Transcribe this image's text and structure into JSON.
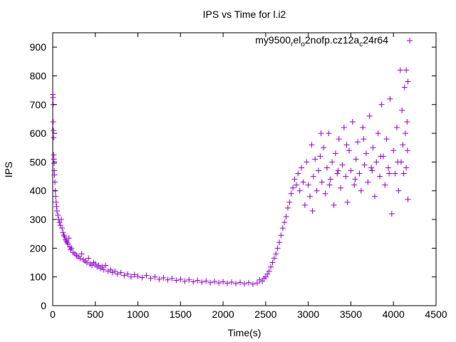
{
  "chart_data": {
    "type": "scatter",
    "title": "IPS vs Time for l.i2",
    "xlabel": "Time(s)",
    "ylabel": "IPS",
    "xlim": [
      0,
      4500
    ],
    "ylim": [
      0,
      950
    ],
    "xticks": [
      "0",
      "500",
      "1000",
      "1500",
      "2000",
      "2500",
      "3000",
      "3500",
      "4000",
      "4500"
    ],
    "yticks": [
      "0",
      "100",
      "200",
      "300",
      "400",
      "500",
      "600",
      "700",
      "800",
      "900"
    ],
    "grid": false,
    "legend": {
      "placement": "top-right",
      "label_parts": [
        "my9500",
        "r",
        "el",
        "o",
        "2nofp.cz12a",
        "c",
        "24r64"
      ]
    },
    "series": [
      {
        "name": "my9500_rel_o2nofp.cz12a_c24r64",
        "color": "#9400d3",
        "marker": "plus",
        "points": [
          [
            2,
            735
          ],
          [
            4,
            725
          ],
          [
            5,
            700
          ],
          [
            6,
            640
          ],
          [
            8,
            610
          ],
          [
            10,
            585
          ],
          [
            12,
            525
          ],
          [
            14,
            510
          ],
          [
            16,
            495
          ],
          [
            18,
            470
          ],
          [
            20,
            455
          ],
          [
            25,
            430
          ],
          [
            30,
            400
          ],
          [
            35,
            380
          ],
          [
            40,
            360
          ],
          [
            45,
            345
          ],
          [
            50,
            330
          ],
          [
            60,
            315
          ],
          [
            70,
            300
          ],
          [
            80,
            290
          ],
          [
            90,
            280
          ],
          [
            100,
            300
          ],
          [
            110,
            270
          ],
          [
            120,
            255
          ],
          [
            130,
            245
          ],
          [
            140,
            240
          ],
          [
            150,
            230
          ],
          [
            160,
            225
          ],
          [
            170,
            220
          ],
          [
            180,
            215
          ],
          [
            190,
            235
          ],
          [
            200,
            205
          ],
          [
            210,
            195
          ],
          [
            220,
            200
          ],
          [
            240,
            185
          ],
          [
            260,
            180
          ],
          [
            280,
            175
          ],
          [
            300,
            170
          ],
          [
            320,
            165
          ],
          [
            340,
            180
          ],
          [
            360,
            160
          ],
          [
            380,
            155
          ],
          [
            400,
            150
          ],
          [
            420,
            165
          ],
          [
            440,
            145
          ],
          [
            460,
            140
          ],
          [
            480,
            150
          ],
          [
            500,
            145
          ],
          [
            520,
            135
          ],
          [
            540,
            140
          ],
          [
            560,
            130
          ],
          [
            580,
            135
          ],
          [
            600,
            125
          ],
          [
            620,
            140
          ],
          [
            650,
            120
          ],
          [
            680,
            125
          ],
          [
            700,
            115
          ],
          [
            730,
            120
          ],
          [
            760,
            110
          ],
          [
            800,
            115
          ],
          [
            840,
            105
          ],
          [
            880,
            110
          ],
          [
            920,
            100
          ],
          [
            960,
            108
          ],
          [
            1000,
            102
          ],
          [
            1050,
            98
          ],
          [
            1100,
            105
          ],
          [
            1150,
            95
          ],
          [
            1200,
            100
          ],
          [
            1250,
            92
          ],
          [
            1300,
            97
          ],
          [
            1350,
            90
          ],
          [
            1400,
            95
          ],
          [
            1450,
            88
          ],
          [
            1500,
            92
          ],
          [
            1550,
            85
          ],
          [
            1600,
            90
          ],
          [
            1650,
            83
          ],
          [
            1700,
            88
          ],
          [
            1750,
            82
          ],
          [
            1800,
            86
          ],
          [
            1850,
            80
          ],
          [
            1900,
            84
          ],
          [
            1950,
            79
          ],
          [
            2000,
            83
          ],
          [
            2050,
            78
          ],
          [
            2100,
            82
          ],
          [
            2150,
            77
          ],
          [
            2200,
            81
          ],
          [
            2250,
            76
          ],
          [
            2300,
            80
          ],
          [
            2350,
            75
          ],
          [
            2400,
            79
          ],
          [
            2430,
            90
          ],
          [
            2460,
            85
          ],
          [
            2480,
            95
          ],
          [
            2500,
            100
          ],
          [
            2520,
            110
          ],
          [
            2540,
            120
          ],
          [
            2560,
            135
          ],
          [
            2580,
            150
          ],
          [
            2600,
            165
          ],
          [
            2620,
            180
          ],
          [
            2640,
            200
          ],
          [
            2660,
            220
          ],
          [
            2680,
            245
          ],
          [
            2700,
            270
          ],
          [
            2720,
            290
          ],
          [
            2740,
            310
          ],
          [
            2760,
            340
          ],
          [
            2780,
            360
          ],
          [
            2800,
            390
          ],
          [
            2820,
            410
          ],
          [
            2840,
            440
          ],
          [
            2860,
            420
          ],
          [
            2880,
            460
          ],
          [
            2900,
            400
          ],
          [
            2920,
            480
          ],
          [
            2940,
            430
          ],
          [
            2960,
            350
          ],
          [
            2980,
            500
          ],
          [
            3000,
            420
          ],
          [
            3020,
            380
          ],
          [
            3040,
            560
          ],
          [
            3060,
            450
          ],
          [
            3080,
            510
          ],
          [
            3100,
            400
          ],
          [
            3120,
            470
          ],
          [
            3140,
            520
          ],
          [
            3160,
            430
          ],
          [
            3180,
            550
          ],
          [
            3200,
            390
          ],
          [
            3220,
            480
          ],
          [
            3240,
            600
          ],
          [
            3260,
            440
          ],
          [
            3280,
            500
          ],
          [
            3300,
            350
          ],
          [
            3320,
            530
          ],
          [
            3340,
            460
          ],
          [
            3360,
            580
          ],
          [
            3380,
            410
          ],
          [
            3400,
            490
          ],
          [
            3420,
            620
          ],
          [
            3440,
            450
          ],
          [
            3460,
            360
          ],
          [
            3480,
            540
          ],
          [
            3500,
            470
          ],
          [
            3520,
            640
          ],
          [
            3540,
            420
          ],
          [
            3560,
            510
          ],
          [
            3580,
            570
          ],
          [
            3600,
            460
          ],
          [
            3620,
            400
          ],
          [
            3640,
            620
          ],
          [
            3660,
            490
          ],
          [
            3680,
            530
          ],
          [
            3700,
            430
          ],
          [
            3720,
            660
          ],
          [
            3740,
            480
          ],
          [
            3760,
            550
          ],
          [
            3780,
            380
          ],
          [
            3800,
            500
          ],
          [
            3820,
            600
          ],
          [
            3840,
            450
          ],
          [
            3860,
            700
          ],
          [
            3880,
            520
          ],
          [
            3900,
            420
          ],
          [
            3920,
            580
          ],
          [
            3940,
            480
          ],
          [
            3960,
            720
          ],
          [
            3980,
            320
          ],
          [
            4000,
            540
          ],
          [
            4020,
            460
          ],
          [
            4040,
            620
          ],
          [
            4060,
            400
          ],
          [
            4080,
            820
          ],
          [
            4090,
            500
          ],
          [
            4100,
            680
          ],
          [
            4110,
            560
          ],
          [
            4120,
            460
          ],
          [
            4130,
            760
          ],
          [
            4140,
            600
          ],
          [
            4150,
            820
          ],
          [
            4160,
            640
          ],
          [
            4165,
            540
          ],
          [
            4170,
            370
          ],
          [
            4170,
            780
          ],
          [
            3050,
            330
          ],
          [
            3150,
            600
          ],
          [
            3250,
            420
          ],
          [
            3350,
            470
          ],
          [
            3450,
            560
          ],
          [
            3550,
            440
          ],
          [
            3650,
            580
          ],
          [
            3750,
            470
          ],
          [
            3850,
            520
          ],
          [
            3950,
            460
          ],
          [
            4050,
            500
          ],
          [
            4150,
            480
          ]
        ]
      }
    ]
  }
}
